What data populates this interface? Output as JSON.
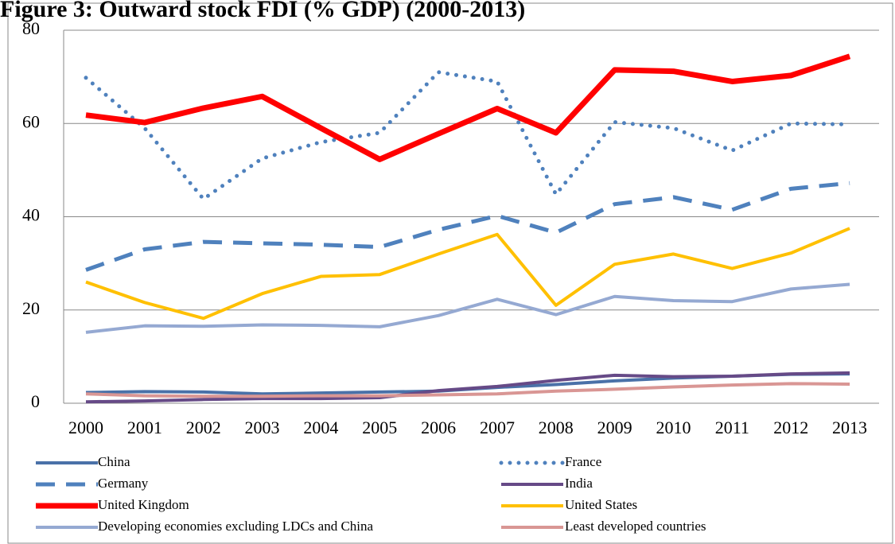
{
  "chart_data": {
    "type": "line",
    "title": "Figure 3: Outward stock FDI (% GDP) (2000-2013)",
    "categories": [
      "2000",
      "2001",
      "2002",
      "2003",
      "2004",
      "2005",
      "2006",
      "2007",
      "2008",
      "2009",
      "2010",
      "2011",
      "2012",
      "2013"
    ],
    "ylim": [
      0,
      80
    ],
    "yticks": [
      0,
      20,
      40,
      60,
      80
    ],
    "grid": true,
    "series": [
      {
        "name": "China",
        "color": "#4a71a8",
        "style": "solid",
        "values": [
          2.3,
          2.5,
          2.4,
          2.0,
          2.2,
          2.4,
          2.6,
          3.4,
          4.0,
          4.8,
          5.4,
          5.8,
          6.2,
          6.3
        ]
      },
      {
        "name": "France",
        "color": "#4f81bd",
        "style": "dotted",
        "values": [
          69.8,
          59,
          43.8,
          52.5,
          56,
          58,
          71,
          69,
          44.8,
          60.3,
          59,
          54.2,
          60,
          59.8
        ]
      },
      {
        "name": "Germany",
        "color": "#4f81bd",
        "style": "dashed",
        "values": [
          28.6,
          33,
          34.6,
          34.3,
          34,
          33.5,
          37.2,
          40.2,
          36.6,
          42.7,
          44.2,
          41.5,
          46,
          47.2
        ]
      },
      {
        "name": "India",
        "color": "#664a87",
        "style": "solid",
        "values": [
          0.3,
          0.5,
          0.8,
          1.0,
          1.0,
          1.2,
          2.7,
          3.6,
          4.9,
          6.0,
          5.7,
          5.8,
          6.3,
          6.5
        ]
      },
      {
        "name": "United Kingdom",
        "color": "#ff0000",
        "style": "thick",
        "values": [
          61.8,
          60.2,
          63.3,
          65.8,
          59,
          52.3,
          57.8,
          63.2,
          58,
          71.5,
          71.2,
          69,
          70.3,
          74.4
        ]
      },
      {
        "name": "United States",
        "color": "#ffc000",
        "style": "solid",
        "values": [
          26,
          21.6,
          18.2,
          23.5,
          27.2,
          27.6,
          32,
          36.2,
          21,
          29.8,
          32,
          28.9,
          32.2,
          37.5
        ]
      },
      {
        "name": "Developing economies excluding LDCs and China",
        "color": "#95a9d2",
        "style": "solid",
        "values": [
          15.2,
          16.6,
          16.5,
          16.8,
          16.7,
          16.4,
          18.8,
          22.3,
          19,
          22.9,
          22,
          21.8,
          24.5,
          25.5
        ]
      },
      {
        "name": "Least developed countries",
        "color": "#d99694",
        "style": "solid",
        "values": [
          2,
          1.6,
          1.5,
          1.5,
          1.6,
          1.6,
          1.8,
          2,
          2.6,
          3,
          3.5,
          3.9,
          4.2,
          4.1
        ]
      }
    ]
  }
}
